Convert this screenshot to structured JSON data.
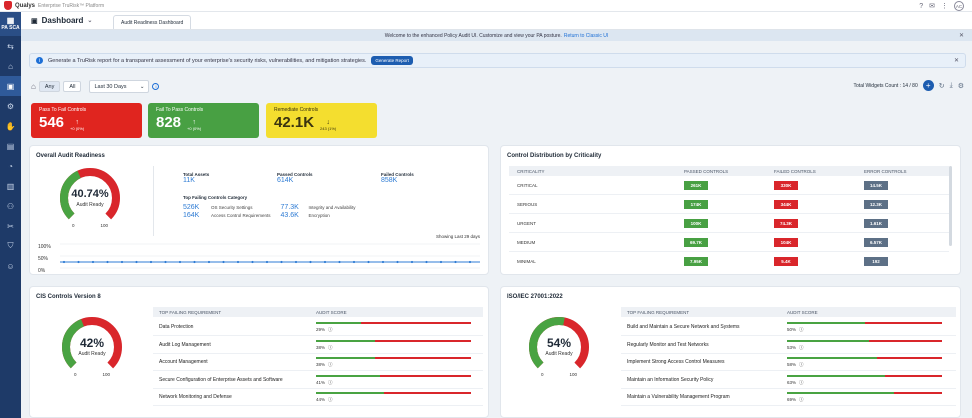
{
  "topbar": {
    "brand": "Qualys",
    "subtitle": "Enterprise TruRisk™ Platform",
    "avatar": "AC"
  },
  "sidebar": {
    "app_label": "PA SCA"
  },
  "header": {
    "title": "Dashboard",
    "tab": "Audit Readiness Dashboard"
  },
  "welcome": {
    "text": "Welcome to the enhanced Policy Audit UI. Customize and view your PA posture.",
    "link": "Return to Classic UI"
  },
  "promo": {
    "text": "Generate a TruRisk report for a transparent assessment of your enterprise's security risks, vulnerabilities, and mitigation strategies.",
    "button": "Generate Report"
  },
  "filters": {
    "any": "Any",
    "all": "All",
    "period": "Last 30 Days"
  },
  "widgets": {
    "count_text": "Total Widgets Count : 14 / 80"
  },
  "kpis": [
    {
      "label": "Pass To Fail Controls",
      "value": "546",
      "delta": "+0 (0%)",
      "color": "#e0251f"
    },
    {
      "label": "Fail To Pass Controls",
      "value": "828",
      "delta": "+0 (0%)",
      "color": "#48a043"
    },
    {
      "label": "Remediate Controls",
      "value": "42.1K",
      "delta": "243 (1%)",
      "color": "#f4de2f"
    }
  ],
  "overall": {
    "title": "Overall Audit Readiness",
    "percent": "40.74%",
    "percent_value": 40.74,
    "caption": "Audit Ready",
    "min": "0",
    "max": "100",
    "total_assets_label": "Total Assets",
    "total_assets": "11K",
    "passed_label": "Passed Controls",
    "passed": "614K",
    "failed_label": "Failed Controls",
    "failed": "858K",
    "category_title": "Top Failing Controls Category",
    "categories": [
      {
        "value": "526K",
        "name": "OS Security Settings"
      },
      {
        "value": "77.3K",
        "name": "Integrity and Availability"
      },
      {
        "value": "164K",
        "name": "Access Control Requirements"
      },
      {
        "value": "43.6K",
        "name": "Encryption"
      }
    ],
    "trend_label": "Showing Last 29 days",
    "y_ticks": [
      "100%",
      "50%",
      "0%"
    ],
    "trend_value": 25
  },
  "distribution": {
    "title": "Control Distribution by Criticality",
    "headers": [
      "CRITICALITY",
      "PASSED CONTROLS",
      "FAILED CONTROLS",
      "ERROR CONTROLS"
    ],
    "rows": [
      {
        "name": "CRITICAL",
        "passed": "261K",
        "failed": "330K",
        "error": "14.5K"
      },
      {
        "name": "SERIOUS",
        "passed": "174K",
        "failed": "344K",
        "error": "12.3K"
      },
      {
        "name": "URGENT",
        "passed": "100K",
        "failed": "74.3K",
        "error": "1.61K"
      },
      {
        "name": "MEDIUM",
        "passed": "69.7K",
        "failed": "104K",
        "error": "6.57K"
      },
      {
        "name": "MINIMAL",
        "passed": "7.95K",
        "failed": "5.4K",
        "error": "192"
      }
    ]
  },
  "cis": {
    "title": "CIS Controls Version 8",
    "percent": "42%",
    "percent_value": 42,
    "caption": "Audit Ready",
    "min": "0",
    "max": "100",
    "headers": [
      "TOP FAILING REQUIREMENT",
      "AUDIT SCORE"
    ],
    "rows": [
      {
        "name": "Data Protection",
        "score": "29%",
        "value": 29
      },
      {
        "name": "Audit Log Management",
        "score": "38%",
        "value": 38
      },
      {
        "name": "Account Management",
        "score": "38%",
        "value": 38
      },
      {
        "name": "Secure Configuration of Enterprise Assets and Software",
        "score": "41%",
        "value": 41
      },
      {
        "name": "Network Monitoring and Defense",
        "score": "44%",
        "value": 44
      }
    ]
  },
  "iso": {
    "title": "ISO/IEC 27001:2022",
    "percent": "54%",
    "percent_value": 54,
    "caption": "Audit Ready",
    "min": "0",
    "max": "100",
    "headers": [
      "TOP FAILING REQUIREMENT",
      "AUDIT SCORE"
    ],
    "rows": [
      {
        "name": "Build and Maintain a Secure Network and Systems",
        "score": "50%",
        "value": 50
      },
      {
        "name": "Regularly Monitor and Test Networks",
        "score": "53%",
        "value": 53
      },
      {
        "name": "Implement Strong Access Control Measures",
        "score": "58%",
        "value": 58
      },
      {
        "name": "Maintain an Information Security Policy",
        "score": "63%",
        "value": 63
      },
      {
        "name": "Maintain a Vulnerability Management Program",
        "score": "69%",
        "value": 69
      }
    ]
  },
  "colors": {
    "green": "#48a043",
    "red": "#d9262b",
    "gray": "#5d7086",
    "blue": "#1d5db0"
  }
}
